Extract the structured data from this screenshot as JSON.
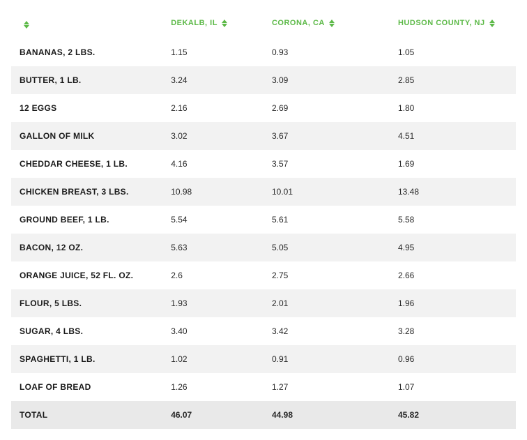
{
  "table": {
    "type": "table",
    "header_color": "#5cb947",
    "row_alt_bg": "#f2f2f2",
    "total_bg": "#e9e9e9",
    "text_color": "#2a2a2a",
    "font_size_header": 11,
    "font_size_cell": 12,
    "sort_icon_color": "#5cb947",
    "columns": [
      {
        "label": "",
        "sortable": true
      },
      {
        "label": "DEKALB, IL",
        "sortable": true
      },
      {
        "label": "CORONA, CA",
        "sortable": true
      },
      {
        "label": "HUDSON COUNTY, NJ",
        "sortable": true
      }
    ],
    "rows": [
      [
        "BANANAS, 2 LBS.",
        "1.15",
        "0.93",
        "1.05"
      ],
      [
        "BUTTER, 1 LB.",
        "3.24",
        "3.09",
        "2.85"
      ],
      [
        "12 EGGS",
        "2.16",
        "2.69",
        "1.80"
      ],
      [
        "GALLON OF MILK",
        "3.02",
        "3.67",
        "4.51"
      ],
      [
        "CHEDDAR CHEESE, 1 LB.",
        "4.16",
        "3.57",
        "1.69"
      ],
      [
        "CHICKEN BREAST, 3 LBS.",
        "10.98",
        "10.01",
        "13.48"
      ],
      [
        "GROUND BEEF, 1 LB.",
        "5.54",
        "5.61",
        "5.58"
      ],
      [
        "BACON, 12 OZ.",
        "5.63",
        "5.05",
        "4.95"
      ],
      [
        "ORANGE JUICE, 52 FL. OZ.",
        "2.6",
        "2.75",
        "2.66"
      ],
      [
        "FLOUR, 5 LBS.",
        "1.93",
        "2.01",
        "1.96"
      ],
      [
        "SUGAR, 4 LBS.",
        "3.40",
        "3.42",
        "3.28"
      ],
      [
        "SPAGHETTI, 1 LB.",
        "1.02",
        "0.91",
        "0.96"
      ],
      [
        "LOAF OF BREAD",
        "1.26",
        "1.27",
        "1.07"
      ]
    ],
    "total": [
      "TOTAL",
      "46.07",
      "44.98",
      "45.82"
    ]
  }
}
